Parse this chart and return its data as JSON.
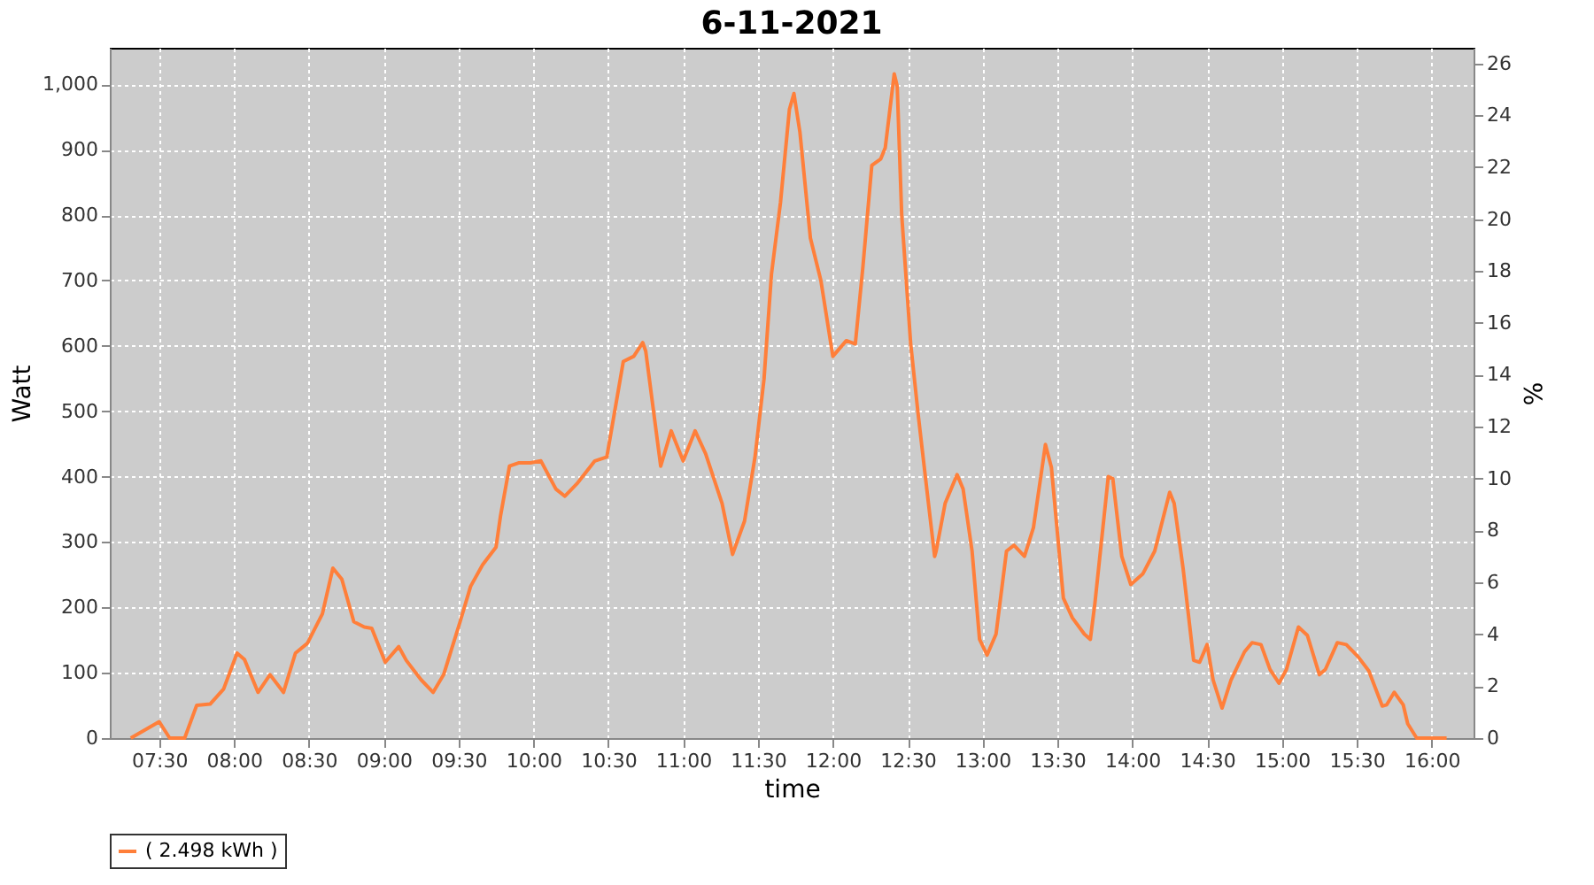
{
  "chart_data": {
    "type": "line",
    "title": "6-11-2021",
    "xlabel": "time",
    "ylabel": "Watt",
    "y2label": "%",
    "x": [
      7.31,
      7.5,
      7.57,
      7.67,
      7.75,
      7.84,
      7.93,
      8.02,
      8.07,
      8.16,
      8.24,
      8.33,
      8.41,
      8.49,
      8.59,
      8.66,
      8.72,
      8.8,
      8.87,
      8.92,
      9.01,
      9.1,
      9.15,
      9.25,
      9.33,
      9.4,
      9.51,
      9.58,
      9.66,
      9.75,
      9.78,
      9.84,
      9.9,
      9.98,
      10.05,
      10.15,
      10.21,
      10.29,
      10.41,
      10.49,
      10.6,
      10.67,
      10.73,
      10.75,
      10.85,
      10.92,
      11.0,
      11.08,
      11.15,
      11.26,
      11.33,
      11.41,
      11.48,
      11.54,
      11.59,
      11.65,
      11.71,
      11.74,
      11.78,
      11.85,
      11.92,
      12.0,
      12.09,
      12.15,
      12.2,
      12.26,
      12.32,
      12.35,
      12.41,
      12.43,
      12.46,
      12.52,
      12.57,
      12.63,
      12.68,
      12.69,
      12.75,
      12.83,
      12.87,
      12.93,
      12.98,
      13.03,
      13.09,
      13.16,
      13.21,
      13.28,
      13.34,
      13.42,
      13.46,
      13.54,
      13.6,
      13.68,
      13.72,
      13.75,
      13.84,
      13.87,
      13.93,
      13.99,
      14.07,
      14.15,
      14.25,
      14.28,
      14.34,
      14.41,
      14.45,
      14.5,
      14.54,
      14.6,
      14.66,
      14.75,
      14.8,
      14.86,
      14.92,
      14.98,
      15.03,
      15.11,
      15.17,
      15.25,
      15.29,
      15.37,
      15.43,
      15.51,
      15.58,
      15.67,
      15.7,
      15.75,
      15.81,
      15.84,
      15.9,
      16.1
    ],
    "series": [
      {
        "name": "( 2.498 kWh )",
        "color": "#ff7f3a",
        "values": [
          0,
          25,
          0,
          0,
          50,
          52,
          75,
          130,
          120,
          70,
          97,
          70,
          130,
          145,
          190,
          260,
          243,
          178,
          170,
          168,
          116,
          140,
          119,
          89,
          70,
          97,
          178,
          232,
          265,
          292,
          340,
          416,
          421,
          421,
          424,
          381,
          370,
          389,
          424,
          430,
          576,
          584,
          605,
          592,
          416,
          470,
          424,
          470,
          435,
          359,
          281,
          332,
          430,
          549,
          710,
          819,
          962,
          986,
          927,
          765,
          700,
          584,
          608,
          603,
          719,
          876,
          886,
          903,
          1016,
          997,
          800,
          603,
          495,
          376,
          278,
          286,
          359,
          403,
          381,
          286,
          151,
          127,
          159,
          286,
          295,
          278,
          322,
          449,
          414,
          214,
          184,
          159,
          151,
          205,
          400,
          397,
          278,
          235,
          251,
          286,
          376,
          359,
          259,
          119,
          116,
          143,
          89,
          46,
          89,
          132,
          146,
          143,
          105,
          84,
          105,
          170,
          157,
          97,
          105,
          146,
          143,
          124,
          103,
          49,
          51,
          70,
          51,
          22,
          0,
          0
        ]
      }
    ],
    "xlim": [
      7.17,
      16.28
    ],
    "xticks": [
      {
        "value": 7.5,
        "label": "07:30"
      },
      {
        "value": 8,
        "label": "08:00"
      },
      {
        "value": 8.5,
        "label": "08:30"
      },
      {
        "value": 9,
        "label": "09:00"
      },
      {
        "value": 9.5,
        "label": "09:30"
      },
      {
        "value": 10,
        "label": "10:00"
      },
      {
        "value": 10.5,
        "label": "10:30"
      },
      {
        "value": 11,
        "label": "11:00"
      },
      {
        "value": 11.5,
        "label": "11:30"
      },
      {
        "value": 12,
        "label": "12:00"
      },
      {
        "value": 12.5,
        "label": "12:30"
      },
      {
        "value": 13,
        "label": "13:00"
      },
      {
        "value": 13.5,
        "label": "13:30"
      },
      {
        "value": 14,
        "label": "14:00"
      },
      {
        "value": 14.5,
        "label": "14:30"
      },
      {
        "value": 15,
        "label": "15:00"
      },
      {
        "value": 15.5,
        "label": "15:30"
      },
      {
        "value": 16,
        "label": "16:00"
      }
    ],
    "ylim": [
      0,
      1056
    ],
    "yticks": [
      0,
      100,
      200,
      300,
      400,
      500,
      600,
      700,
      800,
      900,
      {
        "value": 1000,
        "label": "1,000"
      }
    ],
    "y2lim": [
      0,
      26.6
    ],
    "y2ticks": [
      0,
      2,
      4,
      6,
      8,
      10,
      12,
      14,
      16,
      18,
      20,
      22,
      24,
      26
    ],
    "grid": true,
    "legend": "bottom",
    "marker": "none",
    "line_style": "solid"
  }
}
